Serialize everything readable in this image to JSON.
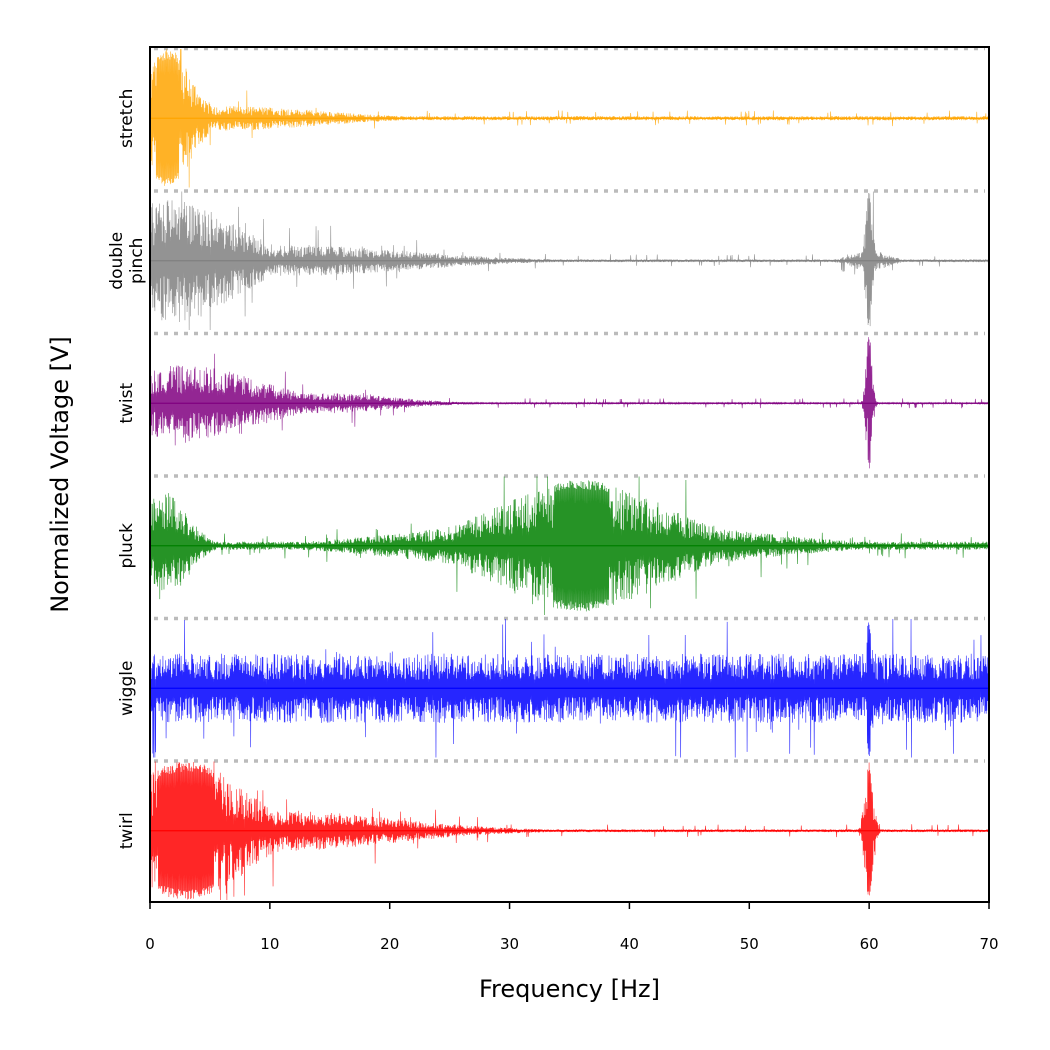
{
  "chart_data": {
    "type": "line",
    "title": "",
    "xlabel": "Frequency [Hz]",
    "ylabel": "Normalized Voltage [V]",
    "xlim": [
      0,
      70
    ],
    "xticks": [
      0,
      10,
      20,
      30,
      40,
      50,
      60,
      70
    ],
    "grid": false,
    "separators": "dotted",
    "series": [
      {
        "name": "stretch",
        "label_lines": [
          "stretch"
        ],
        "color": "#ffa500",
        "noise_floor": 0.03,
        "components": [
          {
            "center": 1.5,
            "width": 2.0,
            "amp": 1.0
          },
          {
            "center": 6.0,
            "width": 8.0,
            "amp": 0.18
          }
        ]
      },
      {
        "name": "double pinch",
        "label_lines": [
          "double",
          "pinch"
        ],
        "color": "#808080",
        "noise_floor": 0.02,
        "components": [
          {
            "center": 2.0,
            "width": 5.0,
            "amp": 0.9
          },
          {
            "center": 12.0,
            "width": 10.0,
            "amp": 0.22
          },
          {
            "center": 60.0,
            "width": 0.3,
            "amp": 1.0
          },
          {
            "center": 60.0,
            "width": 1.5,
            "amp": 0.15
          }
        ]
      },
      {
        "name": "twist",
        "label_lines": [
          "twist"
        ],
        "color": "#800080",
        "noise_floor": 0.01,
        "components": [
          {
            "center": 3.0,
            "width": 6.0,
            "amp": 0.55
          },
          {
            "center": 14.0,
            "width": 6.0,
            "amp": 0.15
          },
          {
            "center": 60.0,
            "width": 0.25,
            "amp": 1.0
          }
        ]
      },
      {
        "name": "pluck",
        "label_lines": [
          "pluck"
        ],
        "color": "#008000",
        "noise_floor": 0.06,
        "components": [
          {
            "center": 1.0,
            "width": 2.0,
            "amp": 0.8
          },
          {
            "center": 36.0,
            "width": 7.0,
            "amp": 0.95
          },
          {
            "center": 36.0,
            "width": 12.0,
            "amp": 0.4
          }
        ]
      },
      {
        "name": "wiggle",
        "label_lines": [
          "wiggle"
        ],
        "color": "#0000ff",
        "noise_floor": 0.5,
        "components": [
          {
            "center": 60.0,
            "width": 0.3,
            "amp": 1.0
          }
        ]
      },
      {
        "name": "twirl",
        "label_lines": [
          "twirl"
        ],
        "color": "#ff0000",
        "noise_floor": 0.02,
        "components": [
          {
            "center": 3.0,
            "width": 5.0,
            "amp": 1.0
          },
          {
            "center": 10.0,
            "width": 10.0,
            "amp": 0.3
          },
          {
            "center": 60.0,
            "width": 0.35,
            "amp": 1.0
          }
        ]
      }
    ]
  }
}
